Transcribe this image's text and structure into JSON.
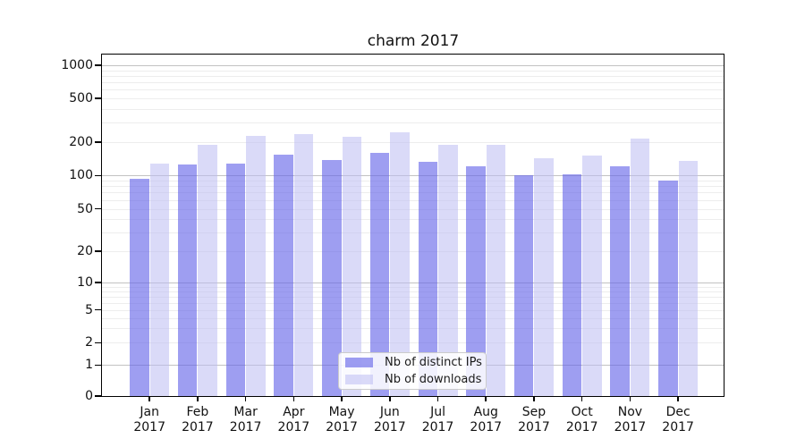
{
  "chart_data": {
    "type": "bar",
    "title": "charm 2017",
    "categories": [
      "Jan 2017",
      "Feb 2017",
      "Mar 2017",
      "Apr 2017",
      "May 2017",
      "Jun 2017",
      "Jul 2017",
      "Aug 2017",
      "Sep 2017",
      "Oct 2017",
      "Nov 2017",
      "Dec 2017"
    ],
    "series": [
      {
        "name": "Nb of distinct IPs",
        "fill": "rgba(98,98,232,0.62)",
        "values": [
          93,
          125,
          128,
          153,
          138,
          160,
          132,
          120,
          101,
          103,
          120,
          90
        ]
      },
      {
        "name": "Nb of downloads",
        "fill": "rgba(188,188,242,0.55)",
        "values": [
          128,
          190,
          228,
          237,
          224,
          245,
          188,
          189,
          143,
          152,
          214,
          134
        ]
      }
    ],
    "y_axis": {
      "scale": "symlog",
      "tick_values": [
        0,
        1,
        2,
        5,
        10,
        20,
        50,
        100,
        200,
        500,
        1000
      ],
      "range": [
        0,
        1280
      ]
    },
    "grid": {
      "shown": true,
      "major_color": "#c2c2c2",
      "minor_color": "#ededed"
    },
    "legend": {
      "position": "lower-center",
      "labels": [
        "Nb of distinct IPs",
        "Nb of downloads"
      ]
    }
  }
}
